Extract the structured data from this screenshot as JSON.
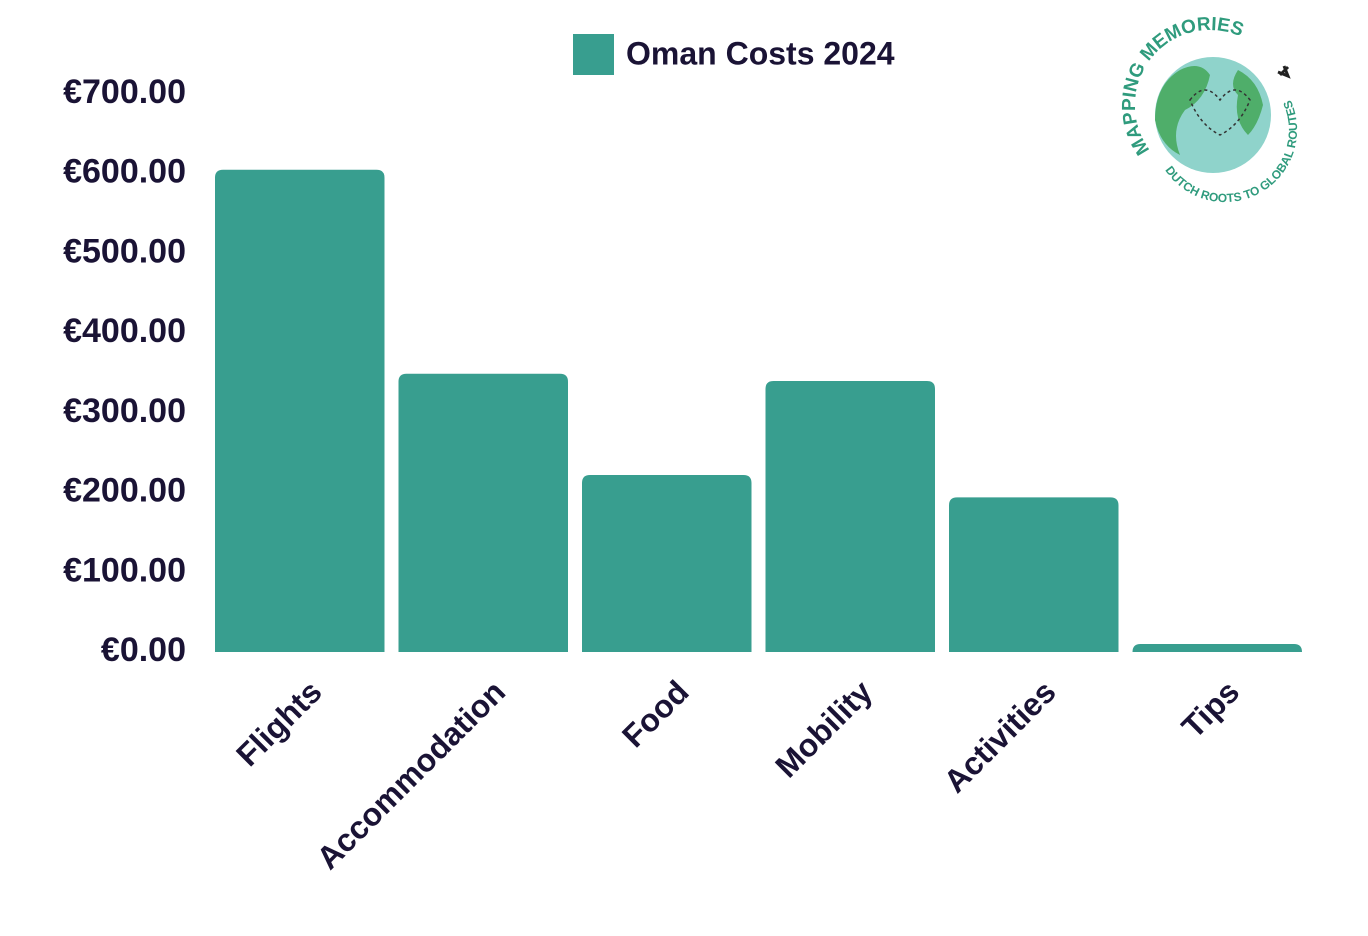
{
  "chart_data": {
    "type": "bar",
    "categories": [
      "Flights",
      "Accommodation",
      "Food",
      "Mobility",
      "Activities",
      "Tips"
    ],
    "series": [
      {
        "name": "Oman Costs 2024",
        "color": "#389e8f",
        "values": [
          605,
          349,
          222,
          340,
          194,
          10
        ]
      }
    ],
    "ylim": [
      0,
      700
    ],
    "yticks": [
      {
        "value": 0,
        "label": "€0.00"
      },
      {
        "value": 100,
        "label": "€100.00"
      },
      {
        "value": 200,
        "label": "€200.00"
      },
      {
        "value": 300,
        "label": "€300.00"
      },
      {
        "value": 400,
        "label": "€400.00"
      },
      {
        "value": 500,
        "label": "€500.00"
      },
      {
        "value": 600,
        "label": "€600.00"
      },
      {
        "value": 700,
        "label": "€700.00"
      }
    ],
    "grid": false,
    "legend": "top"
  },
  "logo": {
    "title": "MAPPING MEMORIES",
    "tagline": "DUTCH ROOTS TO GLOBAL ROUTES"
  }
}
